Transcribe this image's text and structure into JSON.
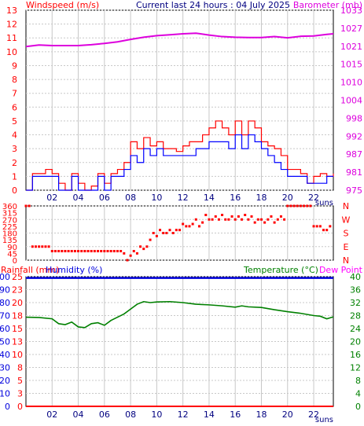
{
  "header": {
    "left_title": "Windspeed (m/s)",
    "center_title": "Current last 24 hours : 04 July 2025",
    "right_title": "Barometer (mb)"
  },
  "bottom_header": {
    "rainfall_label": "Rainfall (mm)",
    "humidity_label": "Humidity (%)",
    "temperature_label": "Temperature (°C)",
    "dewpoint_label": "Dew Point"
  },
  "colors": {
    "wind": "#ff0000",
    "gust": "#0000ff",
    "barometer": "#dd00dd",
    "direction": "#ff0000",
    "rain": "#ff0000",
    "humidity": "#0000dd",
    "temperature": "#008000",
    "grid": "#c8c8c8",
    "axis_left_text": "#ff0000",
    "axis_right_text_top": "#dd00dd",
    "axis_right_text_mid": "#ff0000",
    "axis_right_text_bottom": "#008000"
  },
  "x_axis": {
    "tick_labels": [
      "02",
      "04",
      "06",
      "08",
      "10",
      "12",
      "14",
      "16",
      "18",
      "20",
      "22"
    ],
    "tick_positions_hours": [
      2,
      4,
      6,
      8,
      10,
      12,
      14,
      16,
      18,
      20,
      22
    ],
    "suns_label": "suns",
    "range_hours": [
      0,
      23.5
    ]
  },
  "chart_data": [
    {
      "type": "line",
      "title": "Windspeed (m/s) / Barometer (mb)",
      "y_left_ticks": [
        "0",
        "1",
        "2",
        "3",
        "4",
        "5",
        "6",
        "7",
        "8",
        "9",
        "10",
        "11",
        "12",
        "13"
      ],
      "y_left_range": [
        0,
        13
      ],
      "y_right_ticks": [
        "975",
        "981",
        "987",
        "992",
        "998",
        "1004",
        "1010",
        "1015",
        "1021",
        "1027",
        "1033"
      ],
      "y_right_range": [
        975,
        1033
      ],
      "series": [
        {
          "name": "Windspeed",
          "axis": "left",
          "x": [
            0,
            0.5,
            1,
            1.5,
            2,
            2.5,
            3,
            3.5,
            4,
            4.5,
            5,
            5.5,
            6,
            6.5,
            7,
            7.5,
            8,
            8.5,
            9,
            9.5,
            10,
            10.5,
            11,
            11.5,
            12,
            12.5,
            13,
            13.5,
            14,
            14.5,
            15,
            15.5,
            16,
            16.5,
            17,
            17.5,
            18,
            18.5,
            19,
            19.5,
            20,
            20.5,
            21,
            21.5,
            22,
            22.5,
            23,
            23.5
          ],
          "values": [
            0,
            1.2,
            1.2,
            1.5,
            1.2,
            0.5,
            0,
            1.2,
            0.5,
            0,
            0.3,
            1.2,
            0.5,
            1.2,
            1.5,
            2,
            3.5,
            3,
            3.8,
            3.2,
            3.5,
            3,
            3,
            2.8,
            3.2,
            3.5,
            3.5,
            4,
            4.5,
            5,
            4.5,
            4,
            5,
            4,
            5,
            4.5,
            3.5,
            3.2,
            3,
            2.5,
            1.5,
            1.5,
            1.2,
            0.5,
            1,
            1.2,
            1,
            1.2
          ]
        },
        {
          "name": "Gust",
          "axis": "left",
          "x": [
            0,
            0.5,
            1,
            1.5,
            2,
            2.5,
            3,
            3.5,
            4,
            4.5,
            5,
            5.5,
            6,
            6.5,
            7,
            7.5,
            8,
            8.5,
            9,
            9.5,
            10,
            10.5,
            11,
            11.5,
            12,
            12.5,
            13,
            13.5,
            14,
            14.5,
            15,
            15.5,
            16,
            16.5,
            17,
            17.5,
            18,
            18.5,
            19,
            19.5,
            20,
            20.5,
            21,
            21.5,
            22,
            22.5,
            23,
            23.5
          ],
          "values": [
            0,
            1,
            1,
            1,
            1,
            0,
            0,
            1,
            0,
            0,
            0,
            1,
            0,
            1,
            1,
            1.5,
            2.5,
            2,
            3,
            2.5,
            3,
            2.5,
            2.5,
            2.5,
            2.5,
            2.5,
            3,
            3,
            3.5,
            3.5,
            3.5,
            3,
            4,
            3,
            4,
            3.5,
            3,
            2.5,
            2,
            1.5,
            1,
            1,
            1,
            0.5,
            0.5,
            0.5,
            1,
            1
          ]
        },
        {
          "name": "Barometer",
          "axis": "right",
          "x": [
            0,
            1,
            2,
            3,
            4,
            5,
            6,
            7,
            8,
            9,
            10,
            11,
            12,
            13,
            14,
            15,
            16,
            17,
            18,
            19,
            20,
            21,
            22,
            23,
            23.5
          ],
          "values": [
            1021.3,
            1021.8,
            1021.6,
            1021.6,
            1021.6,
            1021.9,
            1022.3,
            1022.8,
            1023.6,
            1024.3,
            1024.8,
            1025.1,
            1025.4,
            1025.6,
            1025.0,
            1024.5,
            1024.3,
            1024.2,
            1024.2,
            1024.5,
            1024.1,
            1024.6,
            1024.7,
            1025.2,
            1025.4
          ]
        }
      ]
    },
    {
      "type": "scatter",
      "title": "Wind Direction",
      "y_left_ticks": [
        "0",
        "45",
        "90",
        "135",
        "180",
        "225",
        "270",
        "315",
        "360"
      ],
      "y_left_range": [
        0,
        360
      ],
      "y_right_ticks": [
        "N",
        "E",
        "S",
        "W",
        "N"
      ],
      "series": [
        {
          "name": "Direction",
          "x": [
            0,
            0.25,
            0.5,
            0.75,
            1,
            1.25,
            1.5,
            1.75,
            2,
            2.25,
            2.5,
            2.75,
            3,
            3.25,
            3.5,
            3.75,
            4,
            4.25,
            4.5,
            4.75,
            5,
            5.25,
            5.5,
            5.75,
            6,
            6.25,
            6.5,
            6.75,
            7,
            7.25,
            7.5,
            7.75,
            8,
            8.25,
            8.5,
            8.75,
            9,
            9.25,
            9.5,
            9.75,
            10,
            10.25,
            10.5,
            10.75,
            11,
            11.25,
            11.5,
            11.75,
            12,
            12.25,
            12.5,
            12.75,
            13,
            13.25,
            13.5,
            13.75,
            14,
            14.25,
            14.5,
            14.75,
            15,
            15.25,
            15.5,
            15.75,
            16,
            16.25,
            16.5,
            16.75,
            17,
            17.25,
            17.5,
            17.75,
            18,
            18.25,
            18.5,
            18.75,
            19,
            19.25,
            19.5,
            19.75,
            20,
            20.25,
            20.5,
            20.75,
            21,
            21.25,
            21.5,
            21.75,
            22,
            22.25,
            22.5,
            22.75,
            23,
            23.25
          ],
          "values": [
            360,
            360,
            90,
            90,
            90,
            90,
            90,
            90,
            60,
            60,
            60,
            60,
            60,
            60,
            60,
            60,
            60,
            60,
            60,
            60,
            60,
            60,
            60,
            60,
            60,
            60,
            60,
            60,
            60,
            60,
            45,
            0,
            30,
            60,
            45,
            90,
            75,
            90,
            135,
            180,
            160,
            200,
            180,
            180,
            200,
            180,
            200,
            200,
            240,
            225,
            225,
            240,
            270,
            225,
            250,
            300,
            270,
            270,
            290,
            270,
            300,
            270,
            270,
            290,
            270,
            290,
            270,
            300,
            270,
            290,
            250,
            270,
            270,
            250,
            270,
            290,
            250,
            270,
            290,
            270,
            360,
            360,
            360,
            360,
            360,
            360,
            360,
            360,
            225,
            225,
            225,
            200,
            200,
            225
          ]
        }
      ]
    },
    {
      "type": "line",
      "title": "Rainfall / Humidity / Temperature / Dew Point",
      "y_left_ticks": [
        "0",
        "10",
        "20",
        "30",
        "40",
        "50",
        "60",
        "70",
        "80",
        "90",
        "100"
      ],
      "y_left_range": [
        0,
        100
      ],
      "y_rain_ticks": [
        "0",
        "3",
        "5",
        "8",
        "10",
        "13",
        "15",
        "18",
        "20",
        "23",
        "25"
      ],
      "y_right_ticks": [
        "0",
        "4",
        "8",
        "12",
        "16",
        "20",
        "24",
        "28",
        "32",
        "36",
        "40"
      ],
      "y_right_range": [
        0,
        40
      ],
      "series": [
        {
          "name": "Humidity",
          "axis": "left",
          "x": [
            0,
            23.5
          ],
          "values": [
            99,
            99
          ]
        },
        {
          "name": "Rainfall",
          "axis": "left",
          "x": [
            0,
            23.5
          ],
          "values": [
            0,
            0
          ]
        },
        {
          "name": "Temperature",
          "axis": "right",
          "x": [
            0,
            1,
            2,
            2.5,
            3,
            3.5,
            4,
            4.5,
            5,
            5.5,
            6,
            6.5,
            7,
            7.5,
            8,
            8.5,
            9,
            9.5,
            10,
            11,
            12,
            13,
            14,
            15,
            16,
            16.5,
            17,
            18,
            19,
            20,
            21,
            22,
            22.5,
            23,
            23.5
          ],
          "values": [
            27.5,
            27.4,
            27,
            25.5,
            25.2,
            26,
            24.5,
            24.3,
            25.5,
            25.8,
            25,
            26.5,
            27.5,
            28.5,
            30,
            31.5,
            32.3,
            32,
            32.2,
            32.3,
            32,
            31.5,
            31.3,
            31,
            30.6,
            31,
            30.7,
            30.5,
            29.8,
            29.2,
            28.7,
            28,
            27.8,
            27,
            27.6
          ]
        }
      ]
    }
  ]
}
